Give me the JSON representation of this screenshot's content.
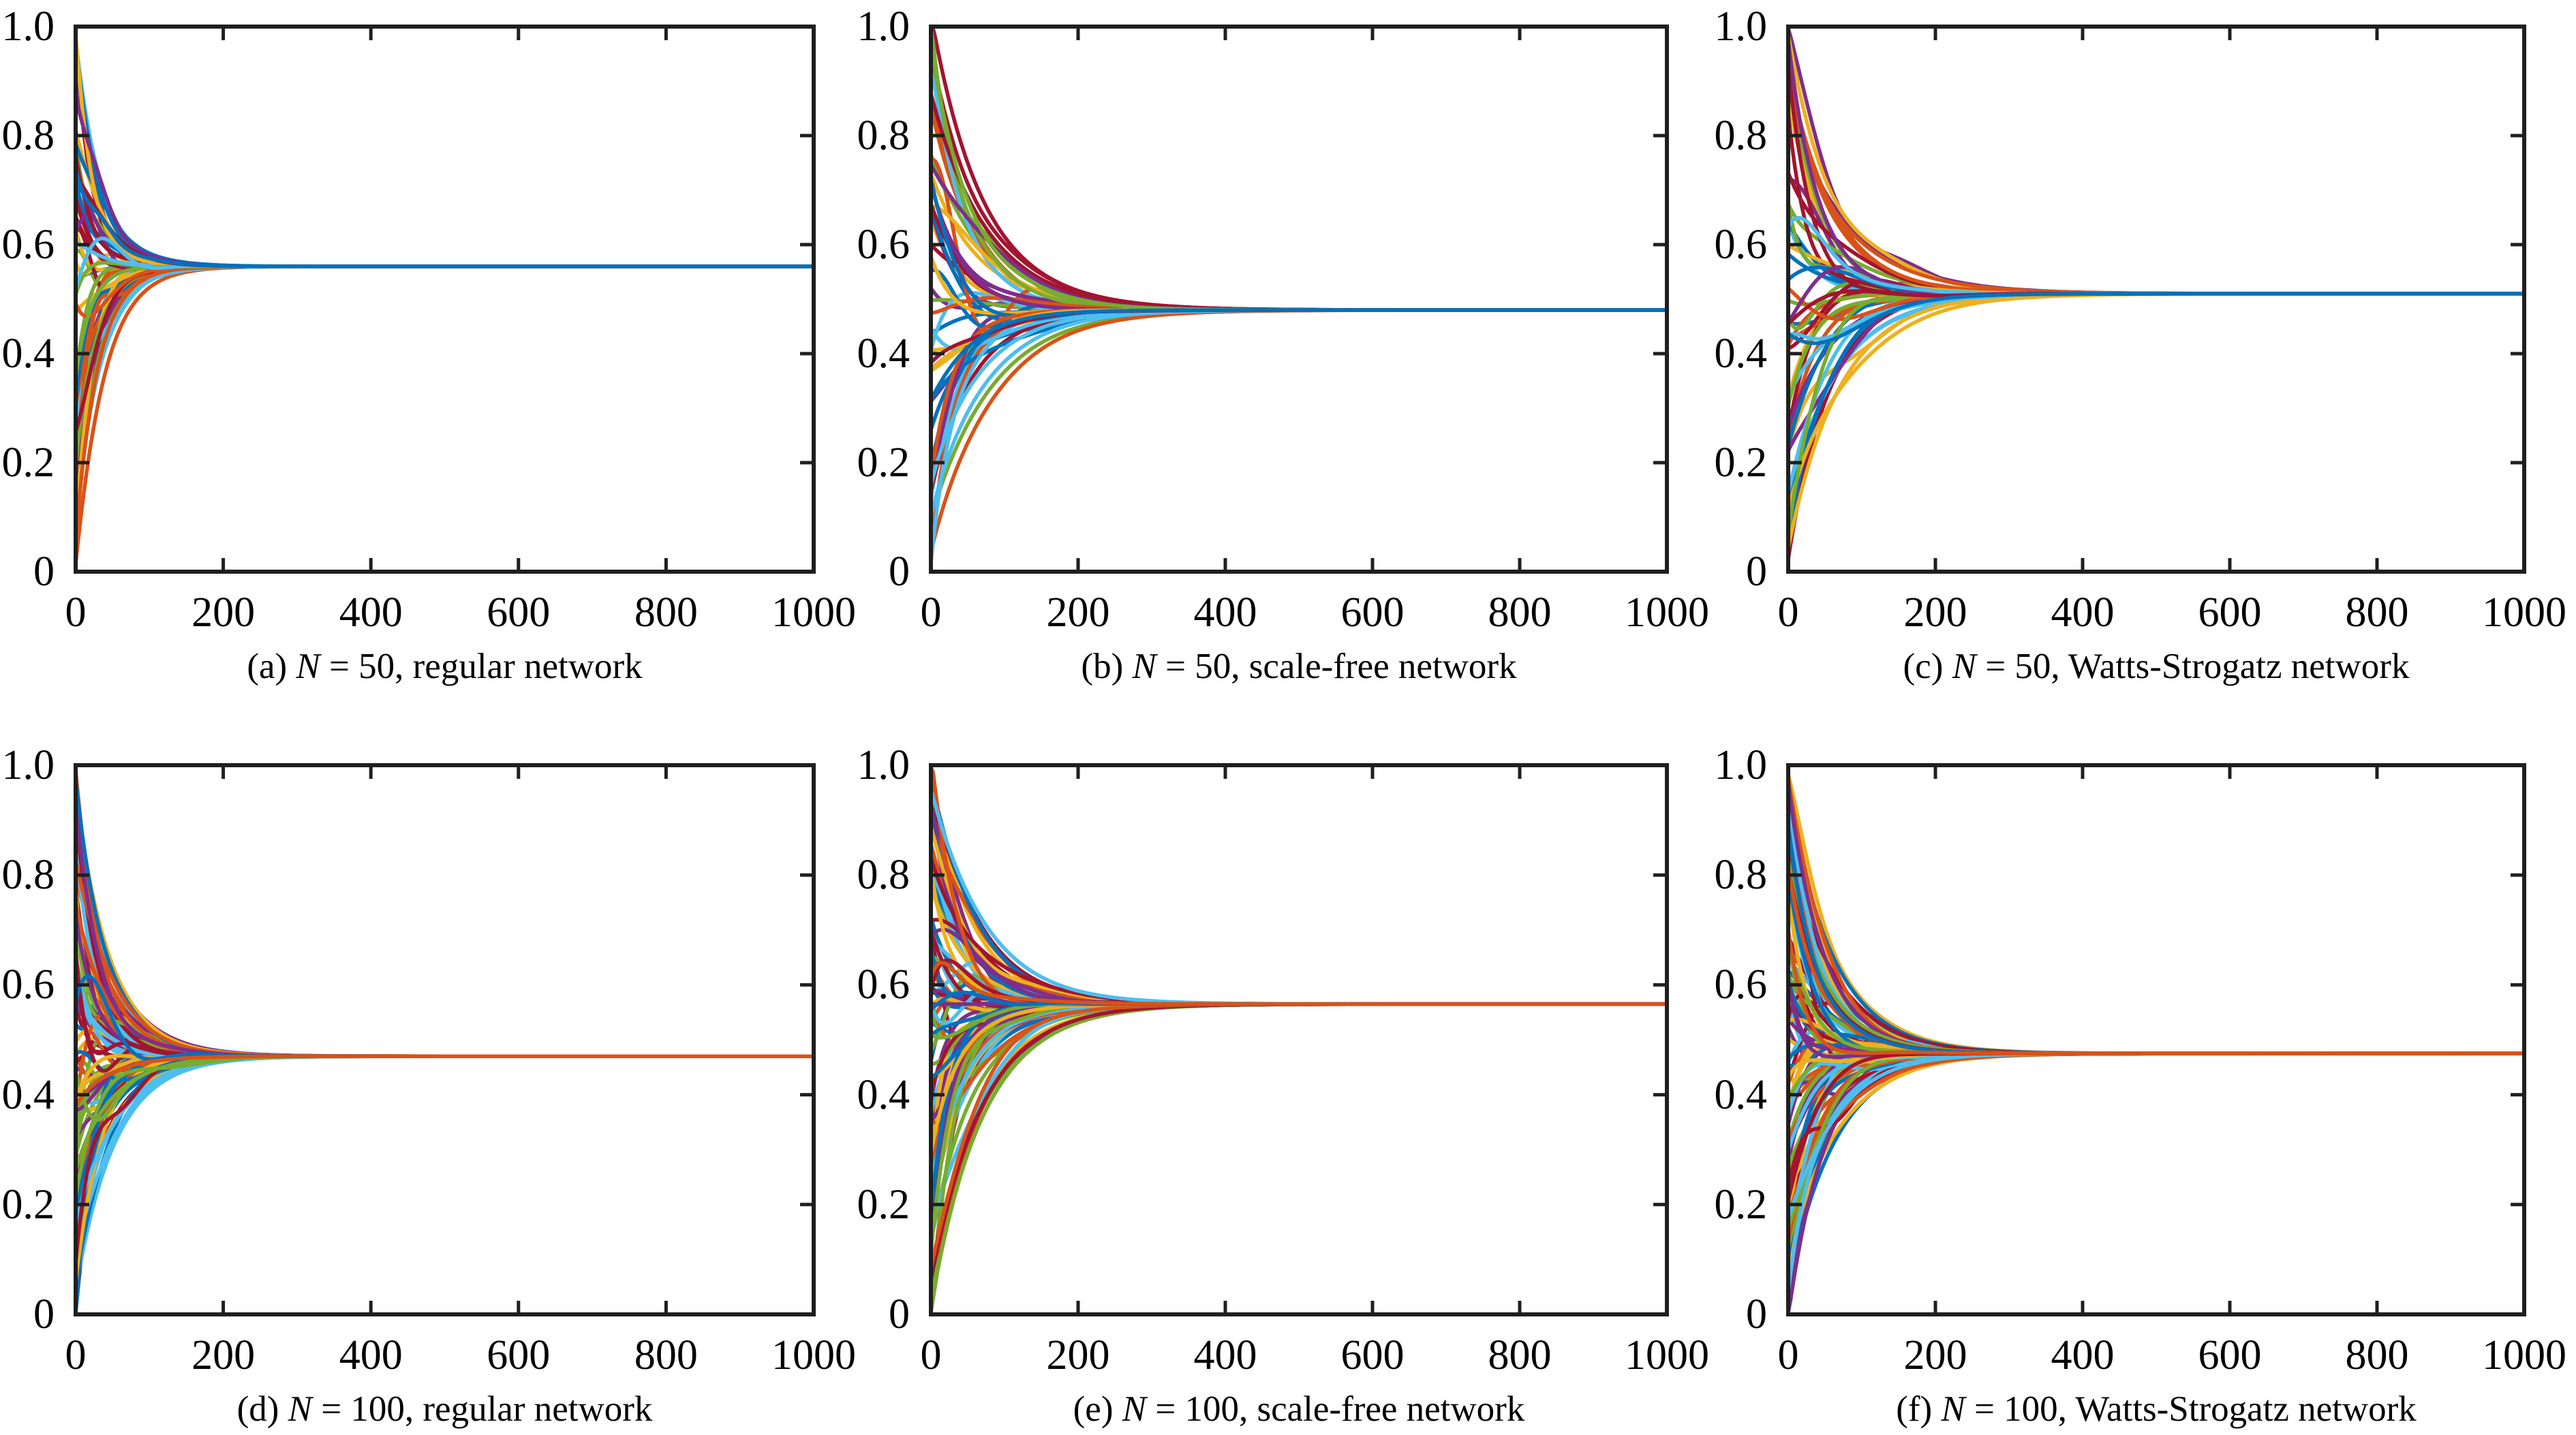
{
  "figure": {
    "background_color": "#ffffff",
    "axis_color": "#1f1f1f",
    "text_color": "#000000",
    "series_palette": [
      "#0072BD",
      "#D95319",
      "#EDB120",
      "#7E2F8E",
      "#77AC30",
      "#4DBEEE",
      "#A2142F"
    ],
    "box": true,
    "tick_direction": "in",
    "grid": false,
    "legend": false
  },
  "chart_data": [
    {
      "panel": "(a)",
      "type": "line",
      "caption": "(a) N = 50, regular network",
      "caption_prefix": "(a) ",
      "caption_var": "N",
      "caption_rest": " = 50, regular network",
      "network": "regular",
      "n_agents": 50,
      "n_series": 50,
      "x_range": [
        0,
        1000
      ],
      "y_range": [
        0,
        1
      ],
      "x_ticks": [
        0,
        200,
        400,
        600,
        800,
        1000
      ],
      "x_tick_labels": [
        "0",
        "200",
        "400",
        "600",
        "800",
        "1000"
      ],
      "y_ticks": [
        0,
        0.2,
        0.4,
        0.6,
        0.8,
        1.0
      ],
      "y_tick_labels": [
        "0",
        "0.2",
        "0.4",
        "0.6",
        "0.8",
        "1.0"
      ],
      "initial_value_range": [
        0.01,
        0.99
      ],
      "consensus_value": 0.56,
      "settle_x": 130,
      "top_line_color": "#0072BD"
    },
    {
      "panel": "(b)",
      "type": "line",
      "caption": "(b) N = 50, scale-free network",
      "caption_prefix": "(b) ",
      "caption_var": "N",
      "caption_rest": " = 50, scale-free network",
      "network": "scale-free",
      "n_agents": 50,
      "n_series": 50,
      "x_range": [
        0,
        1000
      ],
      "y_range": [
        0,
        1
      ],
      "x_ticks": [
        0,
        200,
        400,
        600,
        800,
        1000
      ],
      "x_tick_labels": [
        "0",
        "200",
        "400",
        "600",
        "800",
        "1000"
      ],
      "y_ticks": [
        0,
        0.2,
        0.4,
        0.6,
        0.8,
        1.0
      ],
      "y_tick_labels": [
        "0",
        "0.2",
        "0.4",
        "0.6",
        "0.8",
        "1.0"
      ],
      "initial_value_range": [
        0.01,
        0.99
      ],
      "consensus_value": 0.48,
      "settle_x": 250,
      "top_line_color": "#0072BD"
    },
    {
      "panel": "(c)",
      "type": "line",
      "caption": "(c) N = 50, Watts-Strogatz network",
      "caption_prefix": "(c) ",
      "caption_var": "N",
      "caption_rest": " = 50, Watts-Strogatz network",
      "network": "Watts-Strogatz",
      "n_agents": 50,
      "n_series": 50,
      "x_range": [
        0,
        1000
      ],
      "y_range": [
        0,
        1
      ],
      "x_ticks": [
        0,
        200,
        400,
        600,
        800,
        1000
      ],
      "x_tick_labels": [
        "0",
        "200",
        "400",
        "600",
        "800",
        "1000"
      ],
      "y_ticks": [
        0,
        0.2,
        0.4,
        0.6,
        0.8,
        1.0
      ],
      "y_tick_labels": [
        "0",
        "0.2",
        "0.4",
        "0.6",
        "0.8",
        "1.0"
      ],
      "initial_value_range": [
        0.01,
        0.99
      ],
      "consensus_value": 0.51,
      "settle_x": 260,
      "top_line_color": "#0072BD"
    },
    {
      "panel": "(d)",
      "type": "line",
      "caption": "(d) N = 100, regular network",
      "caption_prefix": "(d) ",
      "caption_var": "N",
      "caption_rest": " = 100, regular network",
      "network": "regular",
      "n_agents": 100,
      "n_series": 100,
      "x_range": [
        0,
        1000
      ],
      "y_range": [
        0,
        1
      ],
      "x_ticks": [
        0,
        200,
        400,
        600,
        800,
        1000
      ],
      "x_tick_labels": [
        "0",
        "200",
        "400",
        "600",
        "800",
        "1000"
      ],
      "y_ticks": [
        0,
        0.2,
        0.4,
        0.6,
        0.8,
        1.0
      ],
      "y_tick_labels": [
        "0",
        "0.2",
        "0.4",
        "0.6",
        "0.8",
        "1.0"
      ],
      "initial_value_range": [
        0.01,
        0.99
      ],
      "consensus_value": 0.47,
      "settle_x": 170,
      "top_line_color": "#D95319"
    },
    {
      "panel": "(e)",
      "type": "line",
      "caption": "(e) N = 100, scale-free network",
      "caption_prefix": "(e) ",
      "caption_var": "N",
      "caption_rest": " = 100, scale-free network",
      "network": "scale-free",
      "n_agents": 100,
      "n_series": 100,
      "x_range": [
        0,
        1000
      ],
      "y_range": [
        0,
        1
      ],
      "x_ticks": [
        0,
        200,
        400,
        600,
        800,
        1000
      ],
      "x_tick_labels": [
        "0",
        "200",
        "400",
        "600",
        "800",
        "1000"
      ],
      "y_ticks": [
        0,
        0.2,
        0.4,
        0.6,
        0.8,
        1.0
      ],
      "y_tick_labels": [
        "0",
        "0.2",
        "0.4",
        "0.6",
        "0.8",
        "1.0"
      ],
      "initial_value_range": [
        0.01,
        0.99
      ],
      "consensus_value": 0.565,
      "settle_x": 230,
      "top_line_color": "#D95319"
    },
    {
      "panel": "(f)",
      "type": "line",
      "caption": "(f) N = 100, Watts-Strogatz network",
      "caption_prefix": "(f) ",
      "caption_var": "N",
      "caption_rest": " = 100, Watts-Strogatz network",
      "network": "Watts-Strogatz",
      "n_agents": 100,
      "n_series": 100,
      "x_range": [
        0,
        1000
      ],
      "y_range": [
        0,
        1
      ],
      "x_ticks": [
        0,
        200,
        400,
        600,
        800,
        1000
      ],
      "x_tick_labels": [
        "0",
        "200",
        "400",
        "600",
        "800",
        "1000"
      ],
      "y_ticks": [
        0,
        0.2,
        0.4,
        0.6,
        0.8,
        1.0
      ],
      "y_tick_labels": [
        "0",
        "0.2",
        "0.4",
        "0.6",
        "0.8",
        "1.0"
      ],
      "initial_value_range": [
        0.01,
        0.99
      ],
      "consensus_value": 0.475,
      "settle_x": 210,
      "top_line_color": "#D95319"
    }
  ]
}
